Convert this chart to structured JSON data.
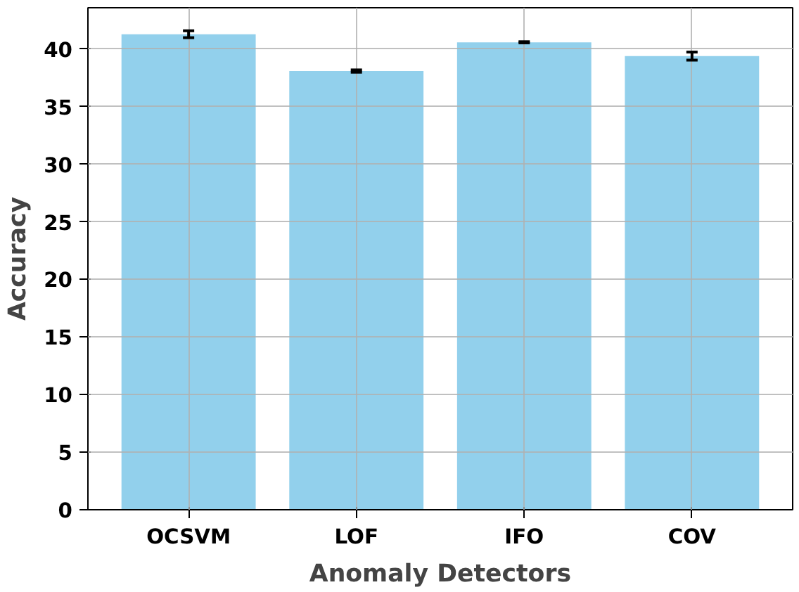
{
  "chart_data": {
    "type": "bar",
    "xlabel": "Anomaly Detectors",
    "ylabel": "Accuracy",
    "categories": [
      "OCSVM",
      "LOF",
      "IFO",
      "COV"
    ],
    "values": [
      41.3,
      38.1,
      40.6,
      39.4
    ],
    "errors": [
      0.3,
      0.1,
      0.05,
      0.35
    ],
    "color": "#92d0ec",
    "ylim": [
      0,
      43.6
    ],
    "yticks": [
      0,
      5,
      10,
      15,
      20,
      25,
      30,
      35,
      40
    ],
    "grid": true
  }
}
